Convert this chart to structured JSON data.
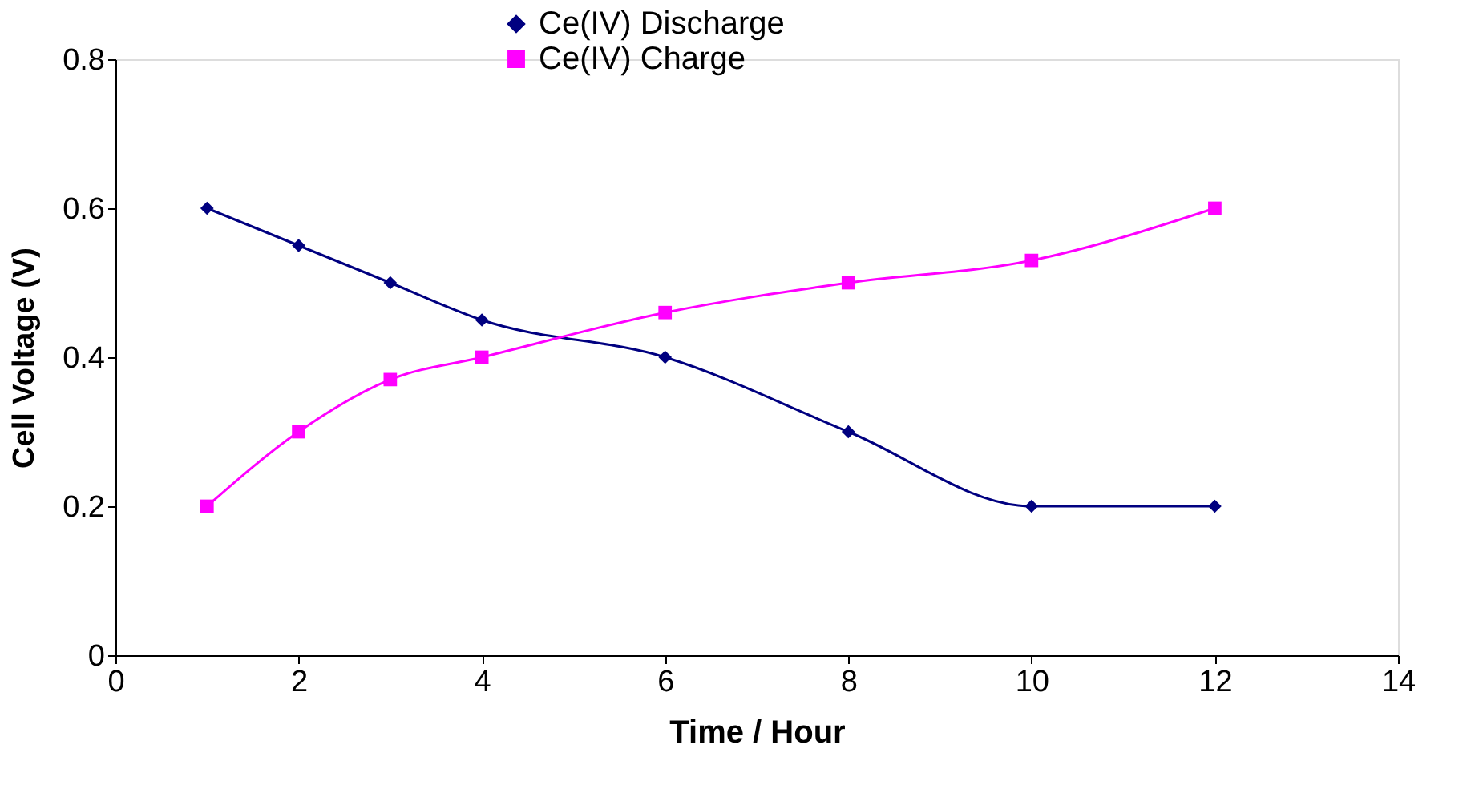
{
  "chart_data": {
    "type": "line",
    "xlabel": "Time / Hour",
    "ylabel": "Cell Voltage (V)",
    "x": [
      1,
      2,
      3,
      4,
      6,
      8,
      10,
      12
    ],
    "series": [
      {
        "name": "Ce(IV) Discharge",
        "color": "#000080",
        "marker": "diamond",
        "values": [
          0.6,
          0.55,
          0.5,
          0.45,
          0.4,
          0.3,
          0.2,
          0.2
        ]
      },
      {
        "name": "Ce(IV) Charge",
        "color": "#ff00ff",
        "marker": "square",
        "values": [
          0.2,
          0.3,
          0.37,
          0.4,
          0.46,
          0.5,
          0.53,
          0.6
        ]
      }
    ],
    "xlim": [
      0,
      14
    ],
    "xticks": [
      0,
      2,
      4,
      6,
      8,
      10,
      12,
      14
    ],
    "ylim": [
      0,
      0.8
    ],
    "yticks": [
      0,
      0.2,
      0.4,
      0.6,
      0.8
    ],
    "grid": false,
    "legend": "top",
    "line_style": "solid"
  }
}
